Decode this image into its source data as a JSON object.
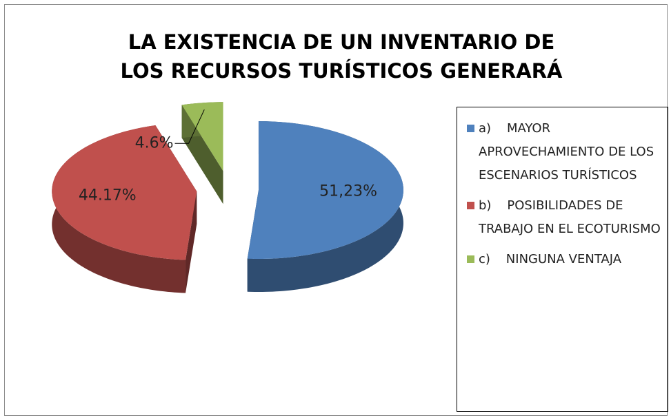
{
  "chart_data": {
    "type": "pie",
    "title": "LA EXISTENCIA DE UN INVENTARIO DE LOS RECURSOS TURÍSTICOS GENERARÁ",
    "categories": [
      "a)    MAYOR APROVECHAMIENTO DE LOS ESCENARIOS TURÍSTICOS",
      "b)    POSIBILIDADES DE TRABAJO EN EL ECOTURISMO",
      "c)    NINGUNA VENTAJA"
    ],
    "values": [
      51.23,
      44.17,
      4.6
    ],
    "value_labels": [
      "51,23%",
      "44.17%",
      "4.6%"
    ],
    "colors": [
      "#4f81bd",
      "#c0504d",
      "#9bbb59"
    ],
    "legend": "right"
  }
}
